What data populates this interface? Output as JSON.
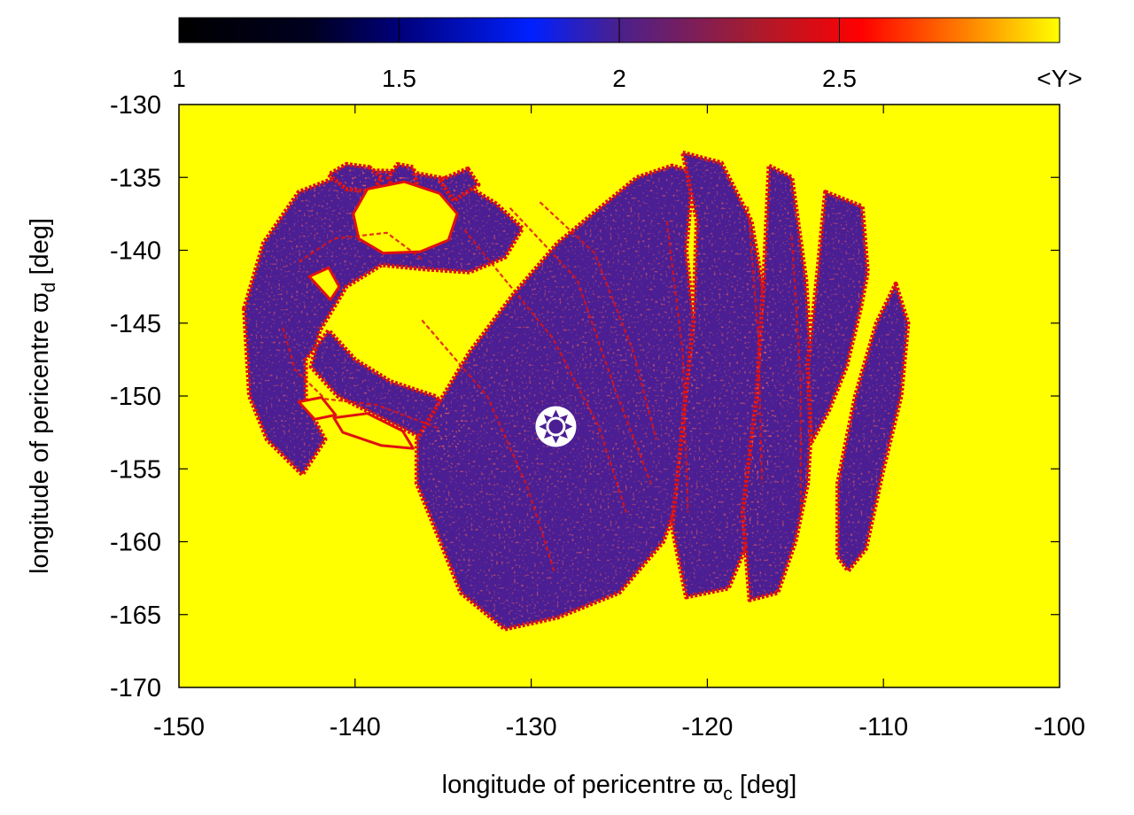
{
  "chart_data": {
    "type": "heatmap",
    "xlabel": "longitude of pericentre ϖ",
    "xlabel_sub": "c",
    "xlabel_unit": " [deg]",
    "ylabel": "longitude of pericentre ϖ",
    "ylabel_sub": "d",
    "ylabel_unit": " [deg]",
    "xlim": [
      -150,
      -100
    ],
    "ylim": [
      -170,
      -130
    ],
    "x_ticks": [
      -150,
      -140,
      -130,
      -120,
      -110,
      -100
    ],
    "y_ticks": [
      -130,
      -135,
      -140,
      -145,
      -150,
      -155,
      -160,
      -165,
      -170
    ],
    "colorbar": {
      "label": "<Y>",
      "range": [
        1,
        3
      ],
      "ticks": [
        1,
        1.5,
        2,
        2.5
      ],
      "tick_labels": [
        "1",
        "1.5",
        "2",
        "2.5"
      ],
      "stops": [
        {
          "value": 1.0,
          "color": "#000000"
        },
        {
          "value": 1.3,
          "color": "#000020"
        },
        {
          "value": 1.5,
          "color": "#00007a"
        },
        {
          "value": 1.8,
          "color": "#0020ff"
        },
        {
          "value": 2.0,
          "color": "#4a208c"
        },
        {
          "value": 2.3,
          "color": "#a51c30"
        },
        {
          "value": 2.55,
          "color": "#ff0000"
        },
        {
          "value": 2.8,
          "color": "#ff8800"
        },
        {
          "value": 3.0,
          "color": "#ffff00"
        }
      ]
    },
    "background_value": 3.0,
    "colors": {
      "chaotic": "#ffff00",
      "regular": "#4b1f93",
      "edge": "#e01010",
      "blue_specks": "#1f2cff"
    },
    "regular_regions": [
      {
        "name": "main-arc",
        "points": [
          [
            -146.3,
            -144
          ],
          [
            -145.2,
            -139.5
          ],
          [
            -143.2,
            -136
          ],
          [
            -140,
            -134.5
          ],
          [
            -137,
            -134.6
          ],
          [
            -134,
            -135.3
          ],
          [
            -132,
            -136.8
          ],
          [
            -130.5,
            -138.5
          ],
          [
            -131.5,
            -140.5
          ],
          [
            -133.5,
            -141.5
          ],
          [
            -136,
            -141.3
          ],
          [
            -138.5,
            -141
          ],
          [
            -140.5,
            -142.5
          ],
          [
            -142,
            -145.5
          ],
          [
            -142.5,
            -148
          ],
          [
            -141,
            -150
          ],
          [
            -138.5,
            -151.5
          ],
          [
            -136,
            -153
          ],
          [
            -134.5,
            -155
          ],
          [
            -133.5,
            -152
          ],
          [
            -135.5,
            -150
          ],
          [
            -138,
            -149
          ],
          [
            -140,
            -147.5
          ],
          [
            -141.5,
            -145.5
          ],
          [
            -142.8,
            -147.5
          ],
          [
            -142.8,
            -150.5
          ],
          [
            -141.7,
            -153
          ],
          [
            -143,
            -155.4
          ],
          [
            -145,
            -153
          ],
          [
            -146,
            -150
          ]
        ]
      },
      {
        "name": "central-lobe",
        "points": [
          [
            -136.5,
            -153
          ],
          [
            -133.5,
            -147
          ],
          [
            -131,
            -143
          ],
          [
            -128.5,
            -139.5
          ],
          [
            -126,
            -137
          ],
          [
            -124,
            -135
          ],
          [
            -122,
            -134.2
          ],
          [
            -120.8,
            -134.6
          ],
          [
            -121.2,
            -140
          ],
          [
            -120.5,
            -148
          ],
          [
            -121,
            -155
          ],
          [
            -122.5,
            -160
          ],
          [
            -125,
            -163.5
          ],
          [
            -128.5,
            -165.2
          ],
          [
            -131.5,
            -166
          ],
          [
            -134,
            -163.5
          ],
          [
            -135.5,
            -159
          ],
          [
            -136.5,
            -156
          ]
        ]
      },
      {
        "name": "band-2",
        "points": [
          [
            -121.4,
            -133.3
          ],
          [
            -119.2,
            -134
          ],
          [
            -117.5,
            -138
          ],
          [
            -116.5,
            -145
          ],
          [
            -116.2,
            -152
          ],
          [
            -117,
            -158
          ],
          [
            -118.8,
            -163.2
          ],
          [
            -121.2,
            -163.8
          ],
          [
            -122,
            -159
          ],
          [
            -121.4,
            -152
          ],
          [
            -120.8,
            -145
          ],
          [
            -120.6,
            -138
          ]
        ]
      },
      {
        "name": "band-3",
        "points": [
          [
            -116.5,
            -134.2
          ],
          [
            -115.2,
            -135
          ],
          [
            -114.4,
            -142
          ],
          [
            -114,
            -150
          ],
          [
            -114.3,
            -156
          ],
          [
            -115,
            -160
          ],
          [
            -116,
            -163.5
          ],
          [
            -117.6,
            -164
          ],
          [
            -118,
            -158
          ],
          [
            -117.2,
            -150
          ],
          [
            -116.8,
            -142
          ]
        ]
      },
      {
        "name": "band-4",
        "points": [
          [
            -113.3,
            -136
          ],
          [
            -111.2,
            -137
          ],
          [
            -110.9,
            -141.5
          ],
          [
            -111.3,
            -144
          ],
          [
            -112.1,
            -148
          ],
          [
            -113.1,
            -151
          ],
          [
            -114.1,
            -153.2
          ],
          [
            -114.3,
            -148
          ],
          [
            -113.7,
            -141
          ]
        ]
      },
      {
        "name": "right-strip",
        "points": [
          [
            -109.3,
            -142.3
          ],
          [
            -108.6,
            -145
          ],
          [
            -109,
            -150
          ],
          [
            -110,
            -155
          ],
          [
            -111,
            -160.5
          ],
          [
            -112,
            -162
          ],
          [
            -112.6,
            -161
          ],
          [
            -112.6,
            -156
          ],
          [
            -111.6,
            -150
          ],
          [
            -110.4,
            -145
          ]
        ]
      },
      {
        "name": "upper-fragment-a",
        "points": [
          [
            -139.2,
            -134.3
          ],
          [
            -138.5,
            -135
          ],
          [
            -139,
            -136
          ],
          [
            -140.5,
            -135.8
          ],
          [
            -141.5,
            -134.8
          ],
          [
            -140.5,
            -134.1
          ]
        ]
      },
      {
        "name": "upper-fragment-b",
        "points": [
          [
            -133.6,
            -134.4
          ],
          [
            -133,
            -135.5
          ],
          [
            -134.4,
            -136.6
          ],
          [
            -135.2,
            -135.2
          ]
        ]
      },
      {
        "name": "upper-fragment-c",
        "points": [
          [
            -137.6,
            -134.1
          ],
          [
            -136.7,
            -134.3
          ],
          [
            -136.5,
            -135.5
          ],
          [
            -137.8,
            -136.2
          ],
          [
            -138.1,
            -135
          ]
        ]
      }
    ],
    "chaotic_islands": [
      {
        "name": "island-top",
        "points": [
          [
            -139.3,
            -135.8
          ],
          [
            -137.2,
            -135.3
          ],
          [
            -135.2,
            -136.1
          ],
          [
            -134.2,
            -137.5
          ],
          [
            -134.7,
            -139.3
          ],
          [
            -136.3,
            -140.1
          ],
          [
            -138.4,
            -140.2
          ],
          [
            -139.8,
            -139.2
          ],
          [
            -140.1,
            -137.5
          ]
        ]
      },
      {
        "name": "arc-gap-1",
        "points": [
          [
            -142.6,
            -141.8
          ],
          [
            -141.5,
            -141.2
          ],
          [
            -140.9,
            -142.5
          ],
          [
            -141.4,
            -143.4
          ]
        ]
      },
      {
        "name": "arc-gap-2",
        "points": [
          [
            -141.2,
            -151.5
          ],
          [
            -139.3,
            -151.2
          ],
          [
            -137.3,
            -152.4
          ],
          [
            -136.7,
            -153.6
          ],
          [
            -138.5,
            -153.4
          ],
          [
            -140.7,
            -152.5
          ]
        ]
      },
      {
        "name": "arc-gap-3",
        "points": [
          [
            -143.2,
            -150.4
          ],
          [
            -141.9,
            -150.1
          ],
          [
            -141.1,
            -151.3
          ],
          [
            -142.3,
            -151.6
          ]
        ]
      }
    ],
    "fine_gaps": [
      [
        [
          -133.8,
          -138.6
        ],
        [
          -128.8,
          -146
        ],
        [
          -126.2,
          -152
        ],
        [
          -124.6,
          -158
        ]
      ],
      [
        [
          -131.2,
          -137.1
        ],
        [
          -127.4,
          -142
        ],
        [
          -125.1,
          -150
        ],
        [
          -123.2,
          -156
        ]
      ],
      [
        [
          -136.2,
          -144.8
        ],
        [
          -132.5,
          -150
        ],
        [
          -130.2,
          -156.3
        ],
        [
          -128.7,
          -162
        ]
      ],
      [
        [
          -129.5,
          -136.7
        ],
        [
          -126.4,
          -140.2
        ],
        [
          -124.2,
          -147
        ],
        [
          -122.9,
          -153
        ]
      ],
      [
        [
          -122.3,
          -138
        ],
        [
          -121.4,
          -147
        ],
        [
          -121.1,
          -158
        ]
      ],
      [
        [
          -117.7,
          -137
        ],
        [
          -117.1,
          -146
        ],
        [
          -116.9,
          -156
        ]
      ],
      [
        [
          -115.2,
          -139
        ],
        [
          -114.7,
          -149
        ],
        [
          -114.7,
          -158
        ]
      ],
      [
        [
          -143.2,
          -140.8
        ],
        [
          -141.2,
          -139.2
        ],
        [
          -138.2,
          -138.8
        ],
        [
          -136.2,
          -140.6
        ]
      ],
      [
        [
          -144.1,
          -145.3
        ],
        [
          -143.4,
          -148.2
        ],
        [
          -141.7,
          -150.2
        ],
        [
          -138.8,
          -150.6
        ],
        [
          -135.3,
          -152.2
        ]
      ]
    ],
    "marker": {
      "x": -128.6,
      "y": -152.1,
      "symbol": "star-in-circle"
    }
  }
}
